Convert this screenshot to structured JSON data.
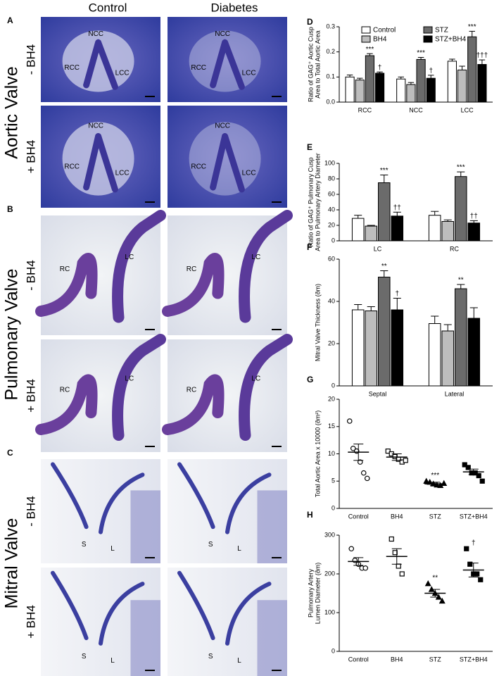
{
  "histology": {
    "columns": [
      "Control",
      "Diabetes"
    ],
    "sections": [
      {
        "panel": "A",
        "title": "Aortic Valve",
        "rows": [
          "- BH4",
          "+ BH4"
        ],
        "labels": [
          [
            [
              "NCC",
              "RCC",
              "LCC"
            ],
            [
              "NCC",
              "RCC",
              "LCC"
            ]
          ],
          [
            [
              "NCC",
              "RCC",
              "LCC"
            ],
            [
              "NCC",
              "RCC",
              "LCC"
            ]
          ]
        ]
      },
      {
        "panel": "B",
        "title": "Pulmonary Valve",
        "rows": [
          "- BH4",
          "+ BH4"
        ],
        "labels": [
          [
            [
              "RC",
              "LC"
            ],
            [
              "RC",
              "LC"
            ]
          ],
          [
            [
              "RC",
              "LC"
            ],
            [
              "RC",
              "LC"
            ]
          ]
        ]
      },
      {
        "panel": "C",
        "title": "Mitral Valve",
        "rows": [
          "- BH4",
          "+ BH4"
        ],
        "labels": [
          [
            [
              "S",
              "L"
            ],
            [
              "S",
              "L"
            ]
          ],
          [
            [
              "S",
              "L"
            ],
            [
              "S",
              "L"
            ]
          ]
        ]
      }
    ]
  },
  "chart_data": [
    {
      "panel": "D",
      "type": "bar",
      "ylabel": [
        "Ratio of GAG⁺ Aortic Cusp",
        "Area to Total Aortic Area"
      ],
      "categories": [
        "RCC",
        "NCC",
        "LCC"
      ],
      "legend": "top-left",
      "series": [
        {
          "name": "Control",
          "color": "#ffffff",
          "values": [
            0.1,
            0.092,
            0.163
          ],
          "errors": [
            0.008,
            0.008,
            0.008
          ],
          "annotations": [
            null,
            null,
            null
          ]
        },
        {
          "name": "BH4",
          "color": "#bdbdbd",
          "values": [
            0.088,
            0.07,
            0.128
          ],
          "errors": [
            0.007,
            0.008,
            0.015
          ],
          "annotations": [
            null,
            null,
            null
          ]
        },
        {
          "name": "STZ",
          "color": "#6b6b6b",
          "values": [
            0.185,
            0.17,
            0.26
          ],
          "errors": [
            0.008,
            0.008,
            0.022
          ],
          "annotations": [
            "***",
            "***",
            "***"
          ]
        },
        {
          "name": "STZ+BH4",
          "color": "#000000",
          "values": [
            0.115,
            0.095,
            0.15
          ],
          "errors": [
            0.005,
            0.012,
            0.018
          ],
          "annotations": [
            "†",
            "†",
            "†††"
          ]
        }
      ],
      "ylim": [
        0,
        0.3
      ],
      "yticks": [
        {
          "value": 0,
          "label": "0.0"
        },
        0.1,
        0.2,
        0.3
      ]
    },
    {
      "panel": "E",
      "type": "bar",
      "ylabel": [
        "Ratio of GAG⁺ Pulmonary Cusp",
        "Area to Pulmonary Artery Diameter"
      ],
      "categories": [
        "LC",
        "RC"
      ],
      "series": [
        {
          "color": "#ffffff",
          "values": [
            29,
            33
          ],
          "errors": [
            4,
            5
          ],
          "annotations": [
            null,
            null
          ]
        },
        {
          "color": "#bdbdbd",
          "values": [
            19,
            25
          ],
          "errors": [
            1,
            2
          ],
          "annotations": [
            null,
            null
          ]
        },
        {
          "color": "#6b6b6b",
          "values": [
            75,
            83
          ],
          "errors": [
            10,
            6
          ],
          "annotations": [
            "***",
            "***"
          ]
        },
        {
          "color": "#000000",
          "values": [
            32,
            23
          ],
          "errors": [
            5,
            3
          ],
          "annotations": [
            "††",
            "††"
          ]
        }
      ],
      "ylim": [
        0,
        100
      ],
      "yticks": [
        0,
        20,
        40,
        60,
        80,
        100
      ]
    },
    {
      "panel": "F",
      "type": "bar",
      "ylabel": [
        "Mitral Valve Thickness (ðm)"
      ],
      "categories": [
        "Septal",
        "Lateral"
      ],
      "series": [
        {
          "color": "#ffffff",
          "values": [
            36,
            29.5
          ],
          "errors": [
            2.5,
            3.5
          ],
          "annotations": [
            null,
            null
          ]
        },
        {
          "color": "#bdbdbd",
          "values": [
            35.5,
            26
          ],
          "errors": [
            2,
            3
          ],
          "annotations": [
            null,
            null
          ]
        },
        {
          "color": "#6b6b6b",
          "values": [
            51.5,
            46
          ],
          "errors": [
            3,
            2
          ],
          "annotations": [
            "**",
            "**"
          ]
        },
        {
          "color": "#000000",
          "values": [
            36,
            32
          ],
          "errors": [
            5.5,
            5
          ],
          "annotations": [
            "†",
            null
          ]
        }
      ],
      "ylim": [
        0,
        60
      ],
      "yticks": [
        0,
        20,
        40,
        60
      ]
    },
    {
      "panel": "G",
      "type": "dot",
      "ylabel": [
        "Total Aortic Area x 10000 (ðm²)"
      ],
      "categories": [
        "Control",
        "BH4",
        "STZ",
        "STZ+BH4"
      ],
      "markers": [
        "open-circle",
        "open-square",
        "filled-triangle",
        "filled-square"
      ],
      "points": [
        [
          16,
          11,
          10.5,
          8.5,
          6.5,
          5.5
        ],
        [
          10.5,
          10,
          9.5,
          9,
          8.5,
          8.8
        ],
        [
          5,
          4.8,
          4.5,
          4.3,
          4.2,
          4.6
        ],
        [
          8,
          7.5,
          6.5,
          6.5,
          6,
          5
        ]
      ],
      "means": [
        10.3,
        9.4,
        4.5,
        6.7
      ],
      "errors": [
        1.5,
        0.6,
        0.3,
        0.5
      ],
      "annotations": [
        null,
        null,
        "***",
        null
      ],
      "ylim": [
        0,
        20
      ],
      "yticks": [
        0,
        5,
        10,
        15,
        20
      ]
    },
    {
      "panel": "H",
      "type": "dot",
      "ylabel": [
        "Pulmonary Artery",
        "Lumen Diameter (ðm)"
      ],
      "categories": [
        "Control",
        "BH4",
        "STZ",
        "STZ+BH4"
      ],
      "markers": [
        "open-circle",
        "open-square",
        "filled-triangle",
        "filled-square"
      ],
      "points": [
        [
          265,
          235,
          225,
          215,
          215
        ],
        [
          290,
          255,
          220,
          200
        ],
        [
          175,
          160,
          150,
          140,
          130
        ],
        [
          265,
          225,
          200,
          200,
          185
        ]
      ],
      "means": [
        232,
        245,
        150,
        210
      ],
      "errors": [
        10,
        20,
        10,
        18
      ],
      "annotations": [
        null,
        null,
        "**",
        "†"
      ],
      "ylim": [
        0,
        300
      ],
      "yticks": [
        0,
        100,
        200,
        300
      ]
    }
  ]
}
